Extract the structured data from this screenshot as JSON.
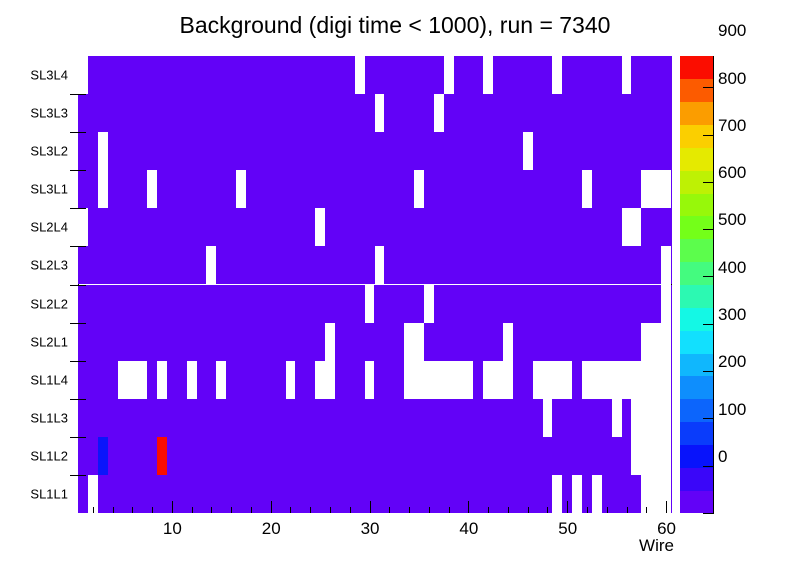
{
  "title": "Background (digi time < 1000), run = 7340",
  "x_axis_title": "Wire",
  "chart_data": {
    "type": "heatmap",
    "title": "Background (digi time < 1000), run = 7340",
    "xlabel": "Wire",
    "x_range": [
      0.5,
      60.5
    ],
    "n_wires": 60,
    "x_major_ticks": [
      10,
      20,
      30,
      40,
      50,
      60
    ],
    "x_minor_tick_step": 2,
    "y_categories_top_to_bottom": [
      "SL3L4",
      "SL3L3",
      "SL3L2",
      "SL3L1",
      "SL2L4",
      "SL2L3",
      "SL2L2",
      "SL2L1",
      "SL1L4",
      "SL1L3",
      "SL1L2",
      "SL1L1"
    ],
    "base_value_color": "#6202f7",
    "empty_cell_color": "#ffffff",
    "empty_cells": {
      "SL3L4": [
        1,
        29,
        38,
        42,
        49,
        56
      ],
      "SL3L3": [
        31,
        37
      ],
      "SL3L2": [
        3,
        46
      ],
      "SL3L1": [
        3,
        8,
        17,
        35,
        52,
        58,
        59,
        60
      ],
      "SL2L4": [
        1,
        25,
        56,
        57
      ],
      "SL2L3": [
        14,
        31,
        60
      ],
      "SL2L2": [
        30,
        36,
        60
      ],
      "SL2L1": [
        26,
        34,
        35,
        44,
        58,
        59,
        60
      ],
      "SL1L4": [
        5,
        6,
        7,
        9,
        12,
        15,
        22,
        25,
        26,
        30,
        34,
        35,
        36,
        37,
        38,
        39,
        40,
        42,
        43,
        44,
        47,
        48,
        49,
        50,
        52,
        53,
        54,
        55,
        56,
        57,
        58,
        59,
        60
      ],
      "SL1L3": [
        48,
        55,
        57,
        58,
        59,
        60
      ],
      "SL1L2": [
        57,
        58,
        59,
        60
      ],
      "SL1L1": [
        2,
        49,
        51,
        53,
        58,
        59,
        60
      ]
    },
    "highlight_cells": [
      {
        "row": "SL1L2",
        "wire": 3,
        "value": 120,
        "color": "#0b15fb"
      },
      {
        "row": "SL1L2",
        "wire": 9,
        "value": 950,
        "color": "#fb0d00"
      }
    ],
    "palette": {
      "z_min": 0,
      "z_max": 966,
      "tick_values": [
        0,
        100,
        200,
        300,
        400,
        500,
        600,
        700,
        800,
        900
      ],
      "colors_bottom_to_top": [
        "#6202f7",
        "#3a06f9",
        "#0813fb",
        "#0a3cfb",
        "#0c65fc",
        "#0e8efd",
        "#10b7fd",
        "#12e0fe",
        "#14f8e5",
        "#2cf9b2",
        "#44fb7f",
        "#5cfd4c",
        "#74ff19",
        "#97f80a",
        "#bef104",
        "#e5ea00",
        "#fbcf00",
        "#fb9d00",
        "#fc5b00",
        "#fb0d00"
      ]
    }
  }
}
